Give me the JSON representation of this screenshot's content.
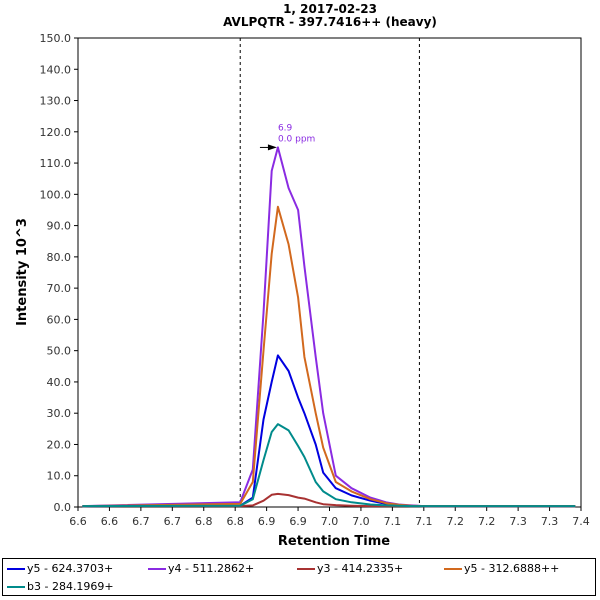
{
  "chart_data": {
    "type": "line",
    "title": "1, 2017-02-23",
    "subtitle": "AVLPQTR - 397.7416++ (heavy)",
    "xlabel": "Retention Time",
    "ylabel": "Intensity 10^3",
    "xlim": [
      6.6,
      7.4
    ],
    "ylim": [
      0,
      150
    ],
    "x_ticks": [
      6.6,
      6.65,
      6.7,
      6.75,
      6.8,
      6.85,
      6.9,
      6.95,
      7.0,
      7.05,
      7.1,
      7.15,
      7.2,
      7.25,
      7.3,
      7.35,
      7.4
    ],
    "x_tick_labels": [
      "6.6",
      "6.6",
      "6.7",
      "6.7",
      "6.8",
      "6.8",
      "6.9",
      "6.9",
      "7.0",
      "7.0",
      "7.1",
      "7.1",
      "7.2",
      "7.2",
      "7.3",
      "7.3",
      "7.4"
    ],
    "y_ticks": [
      0,
      10,
      20,
      30,
      40,
      50,
      60,
      70,
      80,
      90,
      100,
      110,
      120,
      130,
      140,
      150
    ],
    "y_tick_labels": [
      "0.0",
      "10.0",
      "20.0",
      "30.0",
      "40.0",
      "50.0",
      "60.0",
      "70.0",
      "80.0",
      "90.0",
      "100.0",
      "110.0",
      "120.0",
      "130.0",
      "140.0",
      "150.0"
    ],
    "boundaries": [
      6.858,
      7.143
    ],
    "peak_annotation": {
      "x": 6.918,
      "y": 115,
      "line1": "6.9",
      "line2": "0.0 ppm",
      "color": "#8a2be2"
    },
    "x": [
      6.607,
      6.858,
      6.878,
      6.895,
      6.908,
      6.918,
      6.935,
      6.95,
      6.96,
      6.978,
      6.99,
      7.01,
      7.035,
      7.065,
      7.09,
      7.11,
      7.13,
      7.15,
      7.17,
      7.2,
      7.3,
      7.391
    ],
    "series": [
      {
        "name": "y5 - 624.3703+",
        "color": "#0000e0",
        "values": [
          0.3,
          0.4,
          3.0,
          28.0,
          40.0,
          48.5,
          43.5,
          35.0,
          30.0,
          20.0,
          11.0,
          6.0,
          3.7,
          2.0,
          1.0,
          0.6,
          0.4,
          0.3,
          0.3,
          0.3,
          0.3,
          0.3
        ]
      },
      {
        "name": "y4 - 511.2862+",
        "color": "#8a2be2",
        "values": [
          0.3,
          1.5,
          12.0,
          62.0,
          107.5,
          115.0,
          102.0,
          95.0,
          77.0,
          48.0,
          30.0,
          10.0,
          6.0,
          3.0,
          1.5,
          0.8,
          0.5,
          0.3,
          0.3,
          0.3,
          0.3,
          0.3
        ]
      },
      {
        "name": "y3 - 414.2335+",
        "color": "#a83232",
        "values": [
          0.3,
          0.3,
          0.5,
          2.0,
          3.9,
          4.2,
          3.8,
          3.0,
          2.7,
          1.5,
          0.9,
          0.6,
          0.4,
          0.3,
          0.3,
          0.3,
          0.3,
          0.3,
          0.3,
          0.3,
          0.3,
          0.3
        ]
      },
      {
        "name": "y5 - 312.6888++",
        "color": "#d2691e",
        "values": [
          0.3,
          1.0,
          8.0,
          50.0,
          81.0,
          96.0,
          84.0,
          67.0,
          48.0,
          30.0,
          19.0,
          8.0,
          5.0,
          2.5,
          1.2,
          0.7,
          0.4,
          0.3,
          0.3,
          0.3,
          0.3,
          0.3
        ]
      },
      {
        "name": "b3 - 284.1969+",
        "color": "#008b8b",
        "values": [
          0.3,
          0.4,
          2.5,
          15.0,
          24.0,
          26.5,
          24.5,
          19.5,
          16.0,
          8.0,
          5.0,
          2.5,
          1.5,
          0.8,
          0.5,
          0.4,
          0.3,
          0.3,
          0.3,
          0.3,
          0.3,
          0.3
        ]
      }
    ],
    "grid": false,
    "legend_placement": "bottom"
  }
}
